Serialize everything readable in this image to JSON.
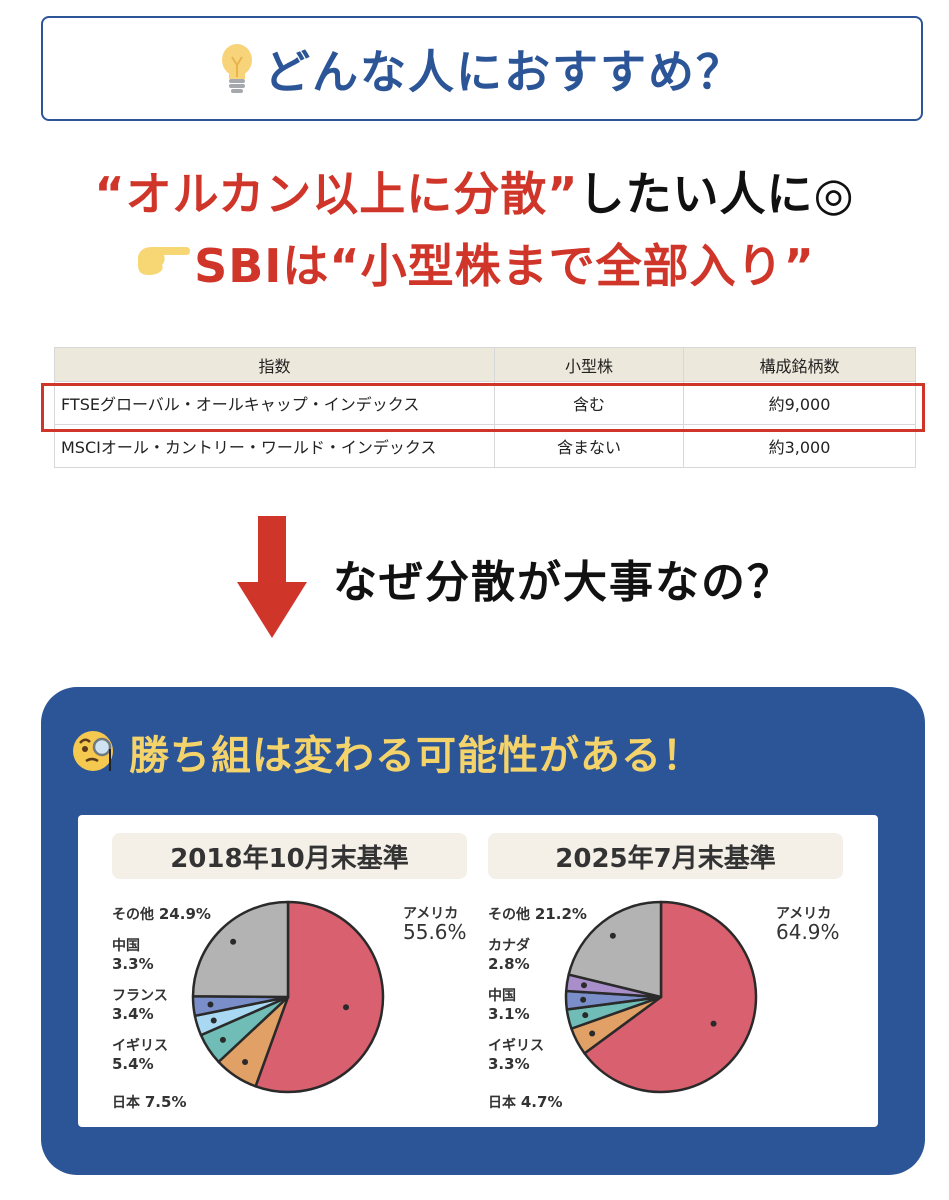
{
  "title": {
    "icon": "lightbulb-icon",
    "text": "どんな人におすすめ？"
  },
  "headline": {
    "line1_red": "“オルカン以上に分散”",
    "line1_black": "したい人に◎",
    "line2_icon": "pointing-finger-icon",
    "line2_red": "SBIは“小型株まで全部入り”"
  },
  "table": {
    "headers": [
      "指数",
      "小型株",
      "構成銘柄数"
    ],
    "rows": [
      {
        "index": "FTSEグローバル・オールキャップ・インデックス",
        "small_cap": "含む",
        "count": "約9,000",
        "highlighted": true
      },
      {
        "index": "MSCIオール・カントリー・ワールド・インデックス",
        "small_cap": "含まない",
        "count": "約3,000",
        "highlighted": false
      }
    ],
    "highlight_color": "#d0352a"
  },
  "why": {
    "icon": "down-arrow-icon",
    "text": "なぜ分散が大事なの？"
  },
  "panel": {
    "icon": "monocle-face-icon",
    "title": "勝ち組は変わる可能性がある！",
    "bg_color": "#2c5597",
    "title_color": "#f5d36b"
  },
  "chart_data": [
    {
      "type": "pie",
      "title": "2018年10月末基準",
      "categories": [
        "アメリカ",
        "日本",
        "イギリス",
        "フランス",
        "中国",
        "その他"
      ],
      "values": [
        55.6,
        7.5,
        5.4,
        3.4,
        3.3,
        24.9
      ],
      "labels": [
        "55.6%",
        "7.5%",
        "5.4%",
        "3.4%",
        "3.3%",
        "24.9%"
      ],
      "colors": [
        "#d9606e",
        "#e0a066",
        "#6fbdb6",
        "#a9d8f2",
        "#7a8fc9",
        "#b3b3b3"
      ]
    },
    {
      "type": "pie",
      "title": "2025年7月末基準",
      "categories": [
        "アメリカ",
        "日本",
        "イギリス",
        "中国",
        "カナダ",
        "その他"
      ],
      "values": [
        64.9,
        4.7,
        3.3,
        3.1,
        2.8,
        21.2
      ],
      "labels": [
        "64.9%",
        "4.7%",
        "3.3%",
        "3.1%",
        "2.8%",
        "21.2%"
      ],
      "colors": [
        "#d9606e",
        "#e0a066",
        "#6fbdb6",
        "#7a8fc9",
        "#a88fca",
        "#b3b3b3"
      ]
    }
  ]
}
